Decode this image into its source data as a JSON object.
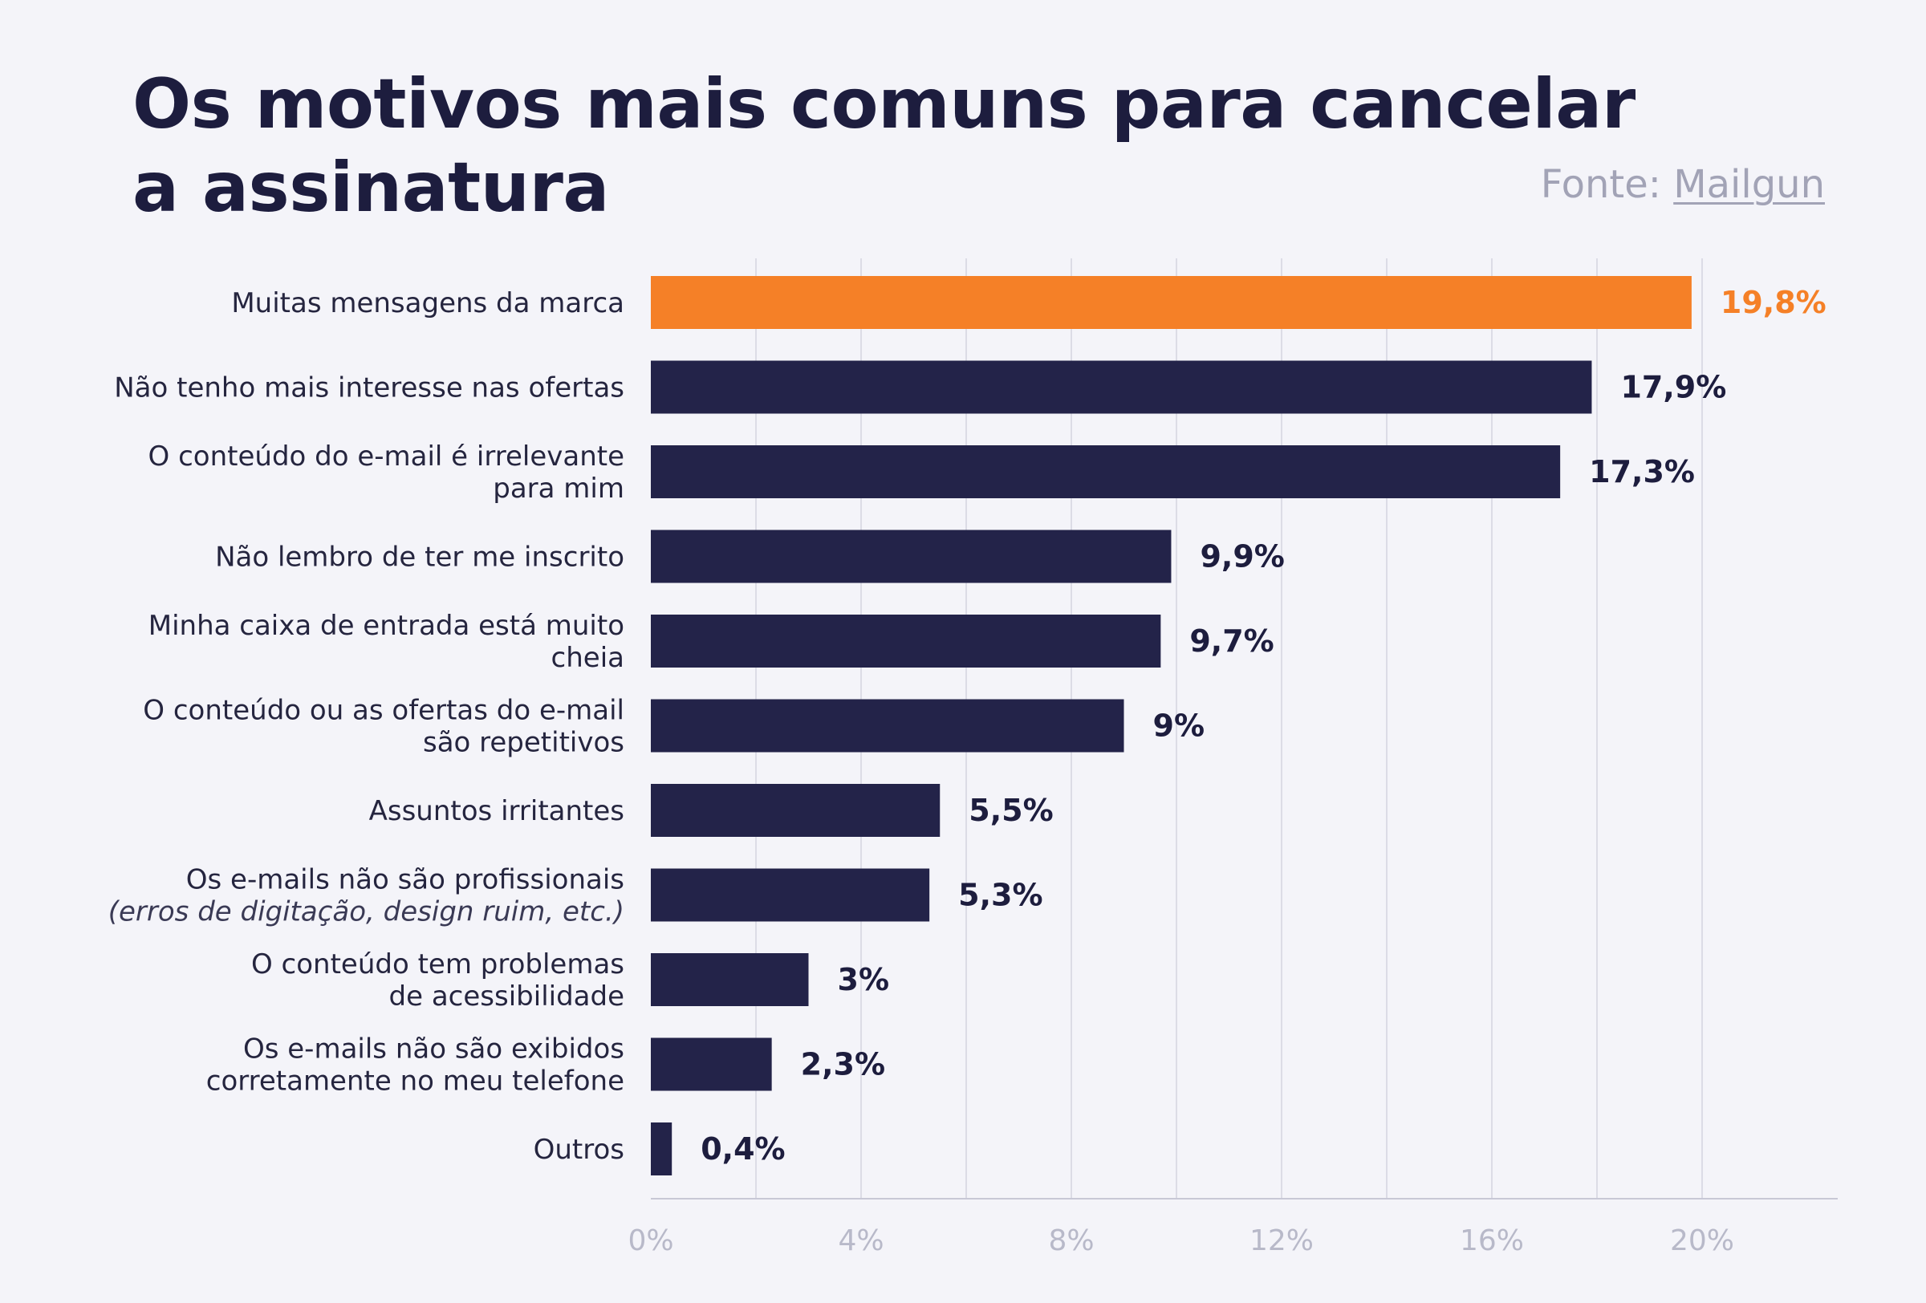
{
  "title": {
    "line1": "Os motivos mais comuns para cancelar",
    "line2": "a assinatura"
  },
  "source": {
    "prefix": "Fonte:",
    "name": "Mailgun"
  },
  "colors": {
    "highlight": "#f58027",
    "bar": "#232349",
    "text": "#1d1d3e",
    "grid": "#dcdce6",
    "axis_label": "#b8b9c9",
    "source": "#a2a3b6",
    "background": "#f4f4f9"
  },
  "chart_data": {
    "type": "bar",
    "orientation": "horizontal",
    "title": "Os motivos mais comuns para cancelar a assinatura",
    "xlabel": "",
    "ylabel": "",
    "xlim": [
      0,
      20
    ],
    "x_ticks": [
      "0%",
      "4%",
      "8%",
      "12%",
      "16%",
      "20%"
    ],
    "grid": true,
    "highlight_index": 0,
    "categories": [
      {
        "lines": [
          "Muitas mensagens da marca"
        ]
      },
      {
        "lines": [
          "Não tenho mais interesse nas ofertas"
        ]
      },
      {
        "lines": [
          "O conteúdo do e-mail é irrelevante",
          "para mim"
        ]
      },
      {
        "lines": [
          "Não lembro de ter me inscrito"
        ]
      },
      {
        "lines": [
          "Minha caixa de entrada está muito",
          "cheia"
        ]
      },
      {
        "lines": [
          "O conteúdo ou as ofertas do e-mail",
          "são repetitivos"
        ]
      },
      {
        "lines": [
          "Assuntos irritantes"
        ]
      },
      {
        "lines": [
          "Os e-mails não são profissionais",
          "(erros de digitação, design ruim, etc.)"
        ],
        "italic_line": 1
      },
      {
        "lines": [
          "O conteúdo tem problemas",
          "de acessibilidade"
        ]
      },
      {
        "lines": [
          "Os e-mails não são exibidos",
          "corretamente no meu telefone"
        ]
      },
      {
        "lines": [
          "Outros"
        ]
      }
    ],
    "values": [
      19.8,
      17.9,
      17.3,
      9.9,
      9.7,
      9.0,
      5.5,
      5.3,
      3.0,
      2.3,
      0.4
    ],
    "value_labels": [
      "19,8%",
      "17,9%",
      "17,3%",
      "9,9%",
      "9,7%",
      "9%",
      "5,5%",
      "5,3%",
      "3%",
      "2,3%",
      "0,4%"
    ]
  }
}
